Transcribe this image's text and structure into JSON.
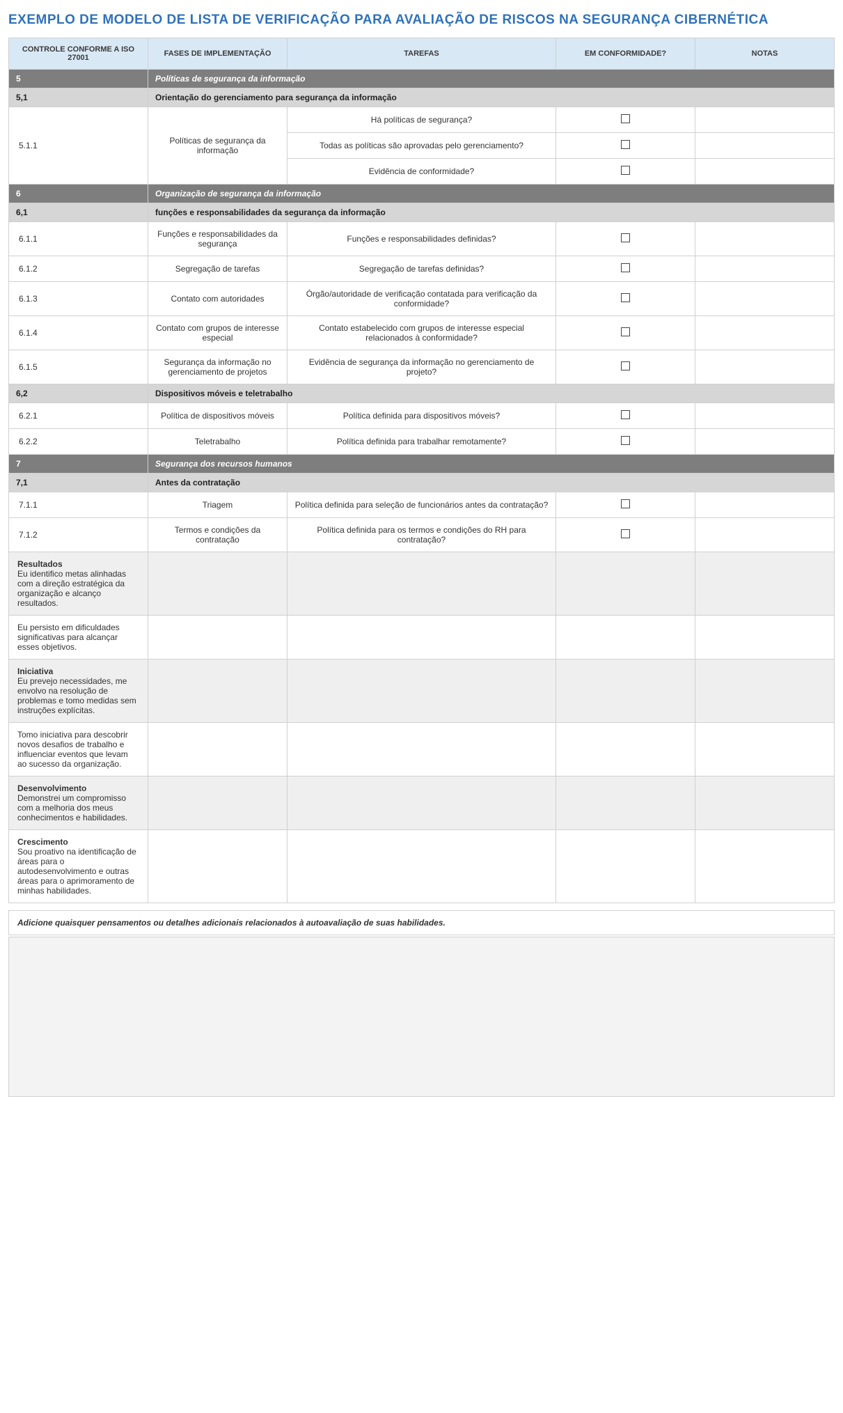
{
  "title": "EXEMPLO DE MODELO DE LISTA DE VERIFICAÇÃO PARA AVALIAÇÃO DE RISCOS NA SEGURANÇA CIBERNÉTICA",
  "colors": {
    "title": "#2f72b9",
    "header_bg": "#d9e8f5",
    "section_bg": "#7e7e7e",
    "subsection_bg": "#d6d6d6",
    "self_shade_bg": "#efefef",
    "border": "#d0d0d0",
    "bigbox_bg": "#f3f3f3"
  },
  "headers": {
    "control": "CONTROLE CONFORME A ISO 27001",
    "phase": "FASES DE IMPLEMENTAÇÃO",
    "tasks": "TAREFAS",
    "compliant": "EM CONFORMIDADE?",
    "notes": "NOTAS"
  },
  "sections": [
    {
      "num": "5",
      "title": "Políticas de segurança da informação",
      "subsections": [
        {
          "num": "5,1",
          "title": "Orientação do gerenciamento para segurança da informação",
          "rows": [
            {
              "num": "5.1.1",
              "rowspan": 3,
              "phase": "Políticas de segurança da informação",
              "phase_rowspan": 3,
              "task": "Há políticas de segurança?",
              "checkbox": true
            },
            {
              "task": "Todas as políticas são aprovadas pelo gerenciamento?",
              "checkbox": true
            },
            {
              "task": "Evidência de conformidade?",
              "checkbox": true
            }
          ]
        }
      ]
    },
    {
      "num": "6",
      "title": "Organização de segurança da informação",
      "subsections": [
        {
          "num": "6,1",
          "title": "funções e responsabilidades da segurança da informação",
          "rows": [
            {
              "num": "6.1.1",
              "phase": "Funções e responsabilidades da segurança",
              "task": "Funções e responsabilidades definidas?",
              "checkbox": true
            },
            {
              "num": "6.1.2",
              "phase": "Segregação de tarefas",
              "task": "Segregação de tarefas definidas?",
              "checkbox": true
            },
            {
              "num": "6.1.3",
              "phase": "Contato com autoridades",
              "task": "Órgão/autoridade de verificação contatada para verificação da conformidade?",
              "checkbox": true
            },
            {
              "num": "6.1.4",
              "phase": "Contato com grupos de interesse especial",
              "task": "Contato estabelecido com grupos de interesse especial relacionados à conformidade?",
              "checkbox": true
            },
            {
              "num": "6.1.5",
              "phase": "Segurança da informação no gerenciamento de projetos",
              "task": "Evidência de segurança da informação no gerenciamento de projeto?",
              "checkbox": true
            }
          ]
        },
        {
          "num": "6,2",
          "title": "Dispositivos móveis e teletrabalho",
          "rows": [
            {
              "num": "6.2.1",
              "phase": "Política de dispositivos móveis",
              "task": "Política definida para dispositivos móveis?",
              "checkbox": true
            },
            {
              "num": "6.2.2",
              "phase": "Teletrabalho",
              "task": "Política definida para trabalhar remotamente?",
              "checkbox": true
            }
          ]
        }
      ]
    },
    {
      "num": "7",
      "title": "Segurança dos recursos humanos",
      "subsections": [
        {
          "num": "7,1",
          "title": "Antes da contratação",
          "rows": [
            {
              "num": "7.1.1",
              "phase": "Triagem",
              "task": "Política definida para seleção de funcionários antes da contratação?",
              "checkbox": true
            },
            {
              "num": "7.1.2",
              "phase": "Termos e condições da contratação",
              "task": "Política definida para os termos e condições do RH para contratação?",
              "checkbox": true
            }
          ]
        }
      ]
    }
  ],
  "self_rows": [
    {
      "strong": "Resultados",
      "text": "Eu identifico metas alinhadas com a direção estratégica da organização e alcanço resultados.",
      "shade": true
    },
    {
      "strong": "",
      "text": "Eu persisto em dificuldades significativas para alcançar esses objetivos.",
      "shade": false
    },
    {
      "strong": "Iniciativa",
      "text": "Eu prevejo necessidades, me envolvo na resolução de problemas e tomo medidas sem instruções explícitas.",
      "shade": true
    },
    {
      "strong": "",
      "text": "Tomo iniciativa para descobrir novos desafios de trabalho e influenciar eventos que levam ao sucesso da organização.",
      "shade": false
    },
    {
      "strong": "Desenvolvimento",
      "text": "Demonstrei um compromisso com a melhoria dos meus conhecimentos e habilidades.",
      "shade": true
    },
    {
      "strong": "Crescimento",
      "text": "Sou proativo na identificação de áreas para o autodesenvolvimento e outras áreas para o aprimoramento de minhas habilidades.",
      "shade": false
    }
  ],
  "footnote": "Adicione quaisquer pensamentos ou detalhes adicionais relacionados à autoavaliação de suas habilidades."
}
